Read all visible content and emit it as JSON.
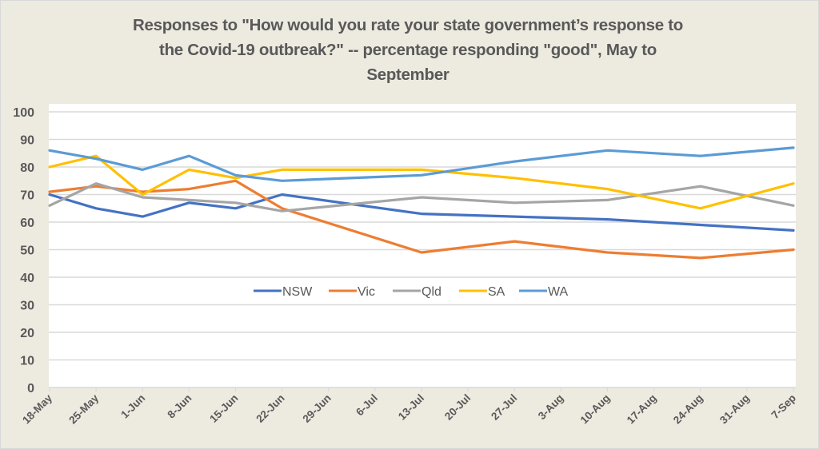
{
  "chart_data": {
    "type": "line",
    "title": "Responses to \"How would you rate your state government’s response to the Covid-19 outbreak?\" -- percentage responding \"good\", May to September",
    "title_lines": [
      "Responses to \"How would you rate your state government’s response to",
      "the Covid-19 outbreak?\" -- percentage responding \"good\", May to",
      "September"
    ],
    "xlabel": "",
    "ylabel": "",
    "ylim": [
      0,
      100
    ],
    "yticks": [
      0,
      10,
      20,
      30,
      40,
      50,
      60,
      70,
      80,
      90,
      100
    ],
    "grid": true,
    "legend_position": "center",
    "x_tick_labels": [
      "18-May",
      "25-May",
      "1-Jun",
      "8-Jun",
      "15-Jun",
      "22-Jun",
      "29-Jun",
      "6-Jul",
      "13-Jul",
      "20-Jul",
      "27-Jul",
      "3-Aug",
      "10-Aug",
      "17-Aug",
      "24-Aug",
      "31-Aug",
      "7-Sep"
    ],
    "x": [
      "18-May",
      "25-May",
      "1-Jun",
      "8-Jun",
      "15-Jun",
      "22-Jun",
      "13-Jul",
      "27-Jul",
      "10-Aug",
      "24-Aug",
      "7-Sep"
    ],
    "x_index": [
      0,
      1,
      2,
      3,
      4,
      5,
      8,
      10,
      12,
      14,
      16
    ],
    "series": [
      {
        "name": "NSW",
        "color": "#4472C4",
        "values": [
          70,
          65,
          62,
          67,
          65,
          70,
          63,
          62,
          61,
          59,
          57
        ]
      },
      {
        "name": "Vic",
        "color": "#ED7D31",
        "values": [
          71,
          73,
          71,
          72,
          75,
          65,
          49,
          53,
          49,
          47,
          50
        ]
      },
      {
        "name": "Qld",
        "color": "#A5A5A5",
        "values": [
          66,
          74,
          69,
          68,
          67,
          64,
          69,
          67,
          68,
          73,
          66
        ]
      },
      {
        "name": "SA",
        "color": "#FFC000",
        "values": [
          80,
          84,
          70,
          79,
          76,
          79,
          79,
          76,
          72,
          65,
          74
        ]
      },
      {
        "name": "WA",
        "color": "#5B9BD5",
        "values": [
          86,
          83,
          79,
          84,
          77,
          75,
          77,
          82,
          86,
          84,
          87
        ]
      }
    ]
  }
}
